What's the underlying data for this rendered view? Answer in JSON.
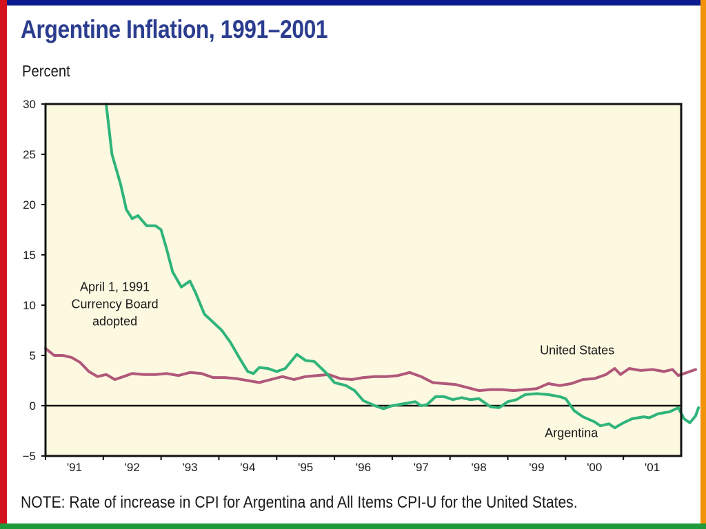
{
  "colors": {
    "top_bar": "#0b1a8c",
    "left_bar": "#d3121e",
    "right_bar": "#f2910a",
    "bottom_bar": "#1f9a3a",
    "title": "#2b3d8f",
    "plot_bg": "#fdf8e0",
    "argentina": "#2fb47a",
    "united_states": "#b0587a"
  },
  "header": {
    "title": "Argentine Inflation, 1991–2001",
    "ylabel": "Percent"
  },
  "footer": {
    "note": "NOTE: Rate of increase in CPI for Argentina and All Items CPI-U for the United States."
  },
  "chart_data": {
    "type": "line",
    "ylabel": "Percent",
    "xlabel": "",
    "xlim": [
      1991,
      2002
    ],
    "ylim": [
      -5,
      30
    ],
    "yticks": [
      30,
      25,
      20,
      15,
      10,
      5,
      0,
      -5
    ],
    "xtick_labels": [
      "'91",
      "'92",
      "'93",
      "'94",
      "'95",
      "'96",
      "'97",
      "'98",
      "'99",
      "'00",
      "'01"
    ],
    "grid": false,
    "zero_line": true,
    "annotations": [
      {
        "lines": [
          "April 1, 1991",
          "Currency Board",
          "adopted"
        ],
        "x": 1992.2,
        "y": 11.4
      }
    ],
    "series": [
      {
        "name": "United States",
        "label_x": 2000.2,
        "label_y": 5.1,
        "points": [
          [
            1991.0,
            5.7
          ],
          [
            1991.15,
            5.0
          ],
          [
            1991.3,
            5.0
          ],
          [
            1991.45,
            4.8
          ],
          [
            1991.6,
            4.3
          ],
          [
            1991.75,
            3.4
          ],
          [
            1991.9,
            2.9
          ],
          [
            1992.05,
            3.1
          ],
          [
            1992.2,
            2.6
          ],
          [
            1992.35,
            2.9
          ],
          [
            1992.5,
            3.2
          ],
          [
            1992.7,
            3.1
          ],
          [
            1992.9,
            3.1
          ],
          [
            1993.1,
            3.2
          ],
          [
            1993.3,
            3.0
          ],
          [
            1993.5,
            3.3
          ],
          [
            1993.7,
            3.2
          ],
          [
            1993.9,
            2.8
          ],
          [
            1994.1,
            2.8
          ],
          [
            1994.3,
            2.7
          ],
          [
            1994.5,
            2.5
          ],
          [
            1994.7,
            2.3
          ],
          [
            1994.9,
            2.6
          ],
          [
            1995.1,
            2.9
          ],
          [
            1995.3,
            2.6
          ],
          [
            1995.5,
            2.9
          ],
          [
            1995.7,
            3.0
          ],
          [
            1995.9,
            3.1
          ],
          [
            1996.1,
            2.7
          ],
          [
            1996.3,
            2.6
          ],
          [
            1996.5,
            2.8
          ],
          [
            1996.7,
            2.9
          ],
          [
            1996.9,
            2.9
          ],
          [
            1997.1,
            3.0
          ],
          [
            1997.3,
            3.3
          ],
          [
            1997.5,
            2.9
          ],
          [
            1997.7,
            2.3
          ],
          [
            1997.9,
            2.2
          ],
          [
            1998.1,
            2.1
          ],
          [
            1998.3,
            1.8
          ],
          [
            1998.5,
            1.5
          ],
          [
            1998.7,
            1.6
          ],
          [
            1998.9,
            1.6
          ],
          [
            1999.1,
            1.5
          ],
          [
            1999.3,
            1.6
          ],
          [
            1999.5,
            1.7
          ],
          [
            1999.7,
            2.2
          ],
          [
            1999.9,
            2.0
          ],
          [
            2000.1,
            2.2
          ],
          [
            2000.3,
            2.6
          ],
          [
            2000.5,
            2.7
          ],
          [
            2000.7,
            3.1
          ],
          [
            2000.85,
            3.7
          ],
          [
            2000.95,
            3.1
          ],
          [
            2001.1,
            3.7
          ],
          [
            2001.3,
            3.5
          ],
          [
            2001.5,
            3.6
          ],
          [
            2001.7,
            3.4
          ],
          [
            2001.85,
            3.6
          ],
          [
            2001.95,
            3.0
          ],
          [
            2002.1,
            3.3
          ],
          [
            2002.25,
            3.6
          ]
        ]
      },
      {
        "name": "Argentina",
        "label_x": 2000.1,
        "label_y": -3.1,
        "points": [
          [
            1992.05,
            30.0
          ],
          [
            1992.15,
            25.0
          ],
          [
            1992.3,
            22.0
          ],
          [
            1992.4,
            19.5
          ],
          [
            1992.5,
            18.6
          ],
          [
            1992.6,
            18.9
          ],
          [
            1992.75,
            17.9
          ],
          [
            1992.9,
            17.9
          ],
          [
            1993.0,
            17.5
          ],
          [
            1993.1,
            15.5
          ],
          [
            1993.2,
            13.3
          ],
          [
            1993.35,
            11.8
          ],
          [
            1993.5,
            12.4
          ],
          [
            1993.6,
            11.2
          ],
          [
            1993.75,
            9.1
          ],
          [
            1993.9,
            8.3
          ],
          [
            1994.05,
            7.5
          ],
          [
            1994.2,
            6.3
          ],
          [
            1994.35,
            4.8
          ],
          [
            1994.5,
            3.4
          ],
          [
            1994.6,
            3.2
          ],
          [
            1994.7,
            3.8
          ],
          [
            1994.85,
            3.7
          ],
          [
            1995.0,
            3.4
          ],
          [
            1995.15,
            3.7
          ],
          [
            1995.35,
            5.1
          ],
          [
            1995.5,
            4.5
          ],
          [
            1995.65,
            4.4
          ],
          [
            1995.85,
            3.3
          ],
          [
            1996.0,
            2.3
          ],
          [
            1996.2,
            2.0
          ],
          [
            1996.35,
            1.5
          ],
          [
            1996.5,
            0.5
          ],
          [
            1996.7,
            0.0
          ],
          [
            1996.85,
            -0.3
          ],
          [
            1997.0,
            0.0
          ],
          [
            1997.2,
            0.2
          ],
          [
            1997.4,
            0.4
          ],
          [
            1997.5,
            0.0
          ],
          [
            1997.6,
            0.1
          ],
          [
            1997.75,
            0.9
          ],
          [
            1997.9,
            0.9
          ],
          [
            1998.05,
            0.6
          ],
          [
            1998.2,
            0.8
          ],
          [
            1998.35,
            0.6
          ],
          [
            1998.5,
            0.7
          ],
          [
            1998.7,
            -0.1
          ],
          [
            1998.85,
            -0.2
          ],
          [
            1999.0,
            0.4
          ],
          [
            1999.15,
            0.6
          ],
          [
            1999.3,
            1.1
          ],
          [
            1999.5,
            1.2
          ],
          [
            1999.7,
            1.1
          ],
          [
            1999.9,
            0.9
          ],
          [
            2000.0,
            0.7
          ],
          [
            2000.15,
            -0.5
          ],
          [
            2000.3,
            -1.1
          ],
          [
            2000.5,
            -1.6
          ],
          [
            2000.6,
            -2.0
          ],
          [
            2000.75,
            -1.8
          ],
          [
            2000.85,
            -2.2
          ],
          [
            2001.0,
            -1.7
          ],
          [
            2001.15,
            -1.3
          ],
          [
            2001.35,
            -1.1
          ],
          [
            2001.45,
            -1.2
          ],
          [
            2001.6,
            -0.8
          ],
          [
            2001.8,
            -0.6
          ],
          [
            2001.95,
            -0.2
          ],
          [
            2002.05,
            -1.3
          ],
          [
            2002.15,
            -1.7
          ],
          [
            2002.25,
            -1.0
          ],
          [
            2002.3,
            -0.2
          ]
        ]
      }
    ]
  }
}
